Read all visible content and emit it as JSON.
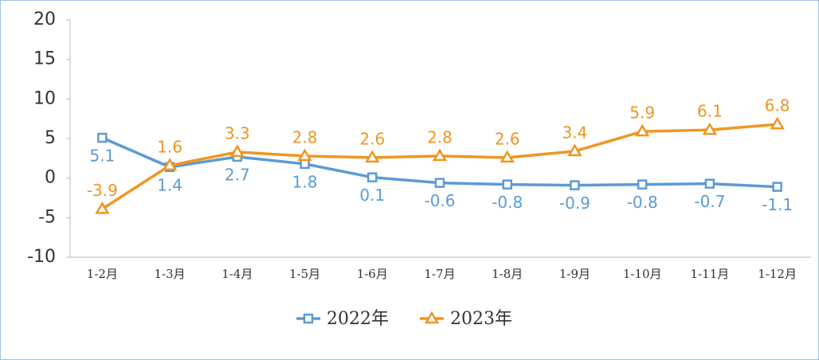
{
  "chart_data": {
    "type": "line",
    "categories": [
      "1-2月",
      "1-3月",
      "1-4月",
      "1-5月",
      "1-6月",
      "1-7月",
      "1-8月",
      "1-9月",
      "1-10月",
      "1-11月",
      "1-12月"
    ],
    "series": [
      {
        "name": "2022年",
        "color": "#5b9bd5",
        "marker": "square",
        "label_position": "below",
        "values": [
          5.1,
          1.4,
          2.7,
          1.8,
          0.1,
          -0.6,
          -0.8,
          -0.9,
          -0.8,
          -0.7,
          -1.1
        ]
      },
      {
        "name": "2023年",
        "color": "#f0961f",
        "marker": "triangle",
        "label_position": "above",
        "values": [
          -3.9,
          1.6,
          3.3,
          2.8,
          2.6,
          2.8,
          2.6,
          3.4,
          5.9,
          6.1,
          6.8
        ]
      }
    ],
    "ylim": [
      -10,
      20
    ],
    "yticks": [
      -10,
      -5,
      0,
      5,
      10,
      15,
      20
    ],
    "grid": false,
    "legend": "bottom"
  }
}
